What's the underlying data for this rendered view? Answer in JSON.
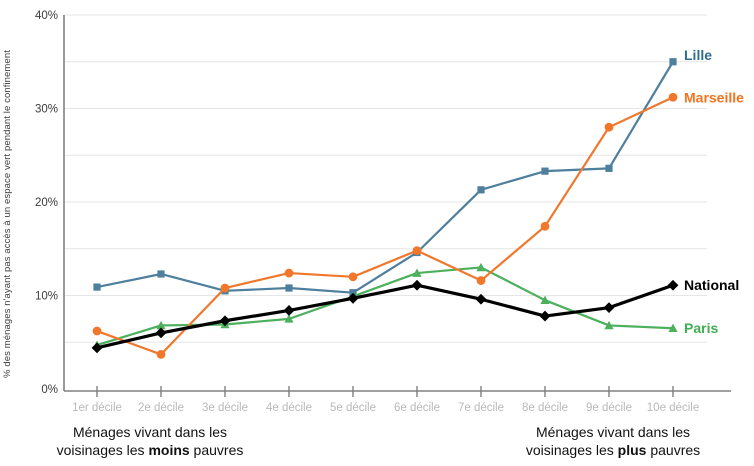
{
  "chart_data": {
    "type": "line",
    "title": "",
    "xlabel": "",
    "ylabel": "% des ménages n'ayant pas accès à un espace vert pendant le confinement",
    "ylim": [
      0,
      40
    ],
    "grid": true,
    "gridline_values": [
      5,
      10,
      15,
      20,
      25,
      30,
      35,
      40
    ],
    "y_tick_values": [
      0,
      10,
      20,
      30,
      40
    ],
    "y_tick_labels": [
      "0%",
      "10%",
      "20%",
      "30%",
      "40%"
    ],
    "categories": [
      "1er décile",
      "2e décile",
      "3e décile",
      "4e décile",
      "5e décile",
      "6e décile",
      "7e décile",
      "8e décile",
      "9e décile",
      "10e décile"
    ],
    "legend_position": "end-of-line labels, right of last point",
    "series": [
      {
        "name": "Lille",
        "color": "#4e7f9d",
        "label_color": "#2e6d8f",
        "marker": "square",
        "line_width": 2.2,
        "label_dy": -7,
        "values": [
          10.9,
          12.3,
          10.5,
          10.8,
          10.3,
          14.6,
          21.3,
          23.3,
          23.6,
          35.0
        ]
      },
      {
        "name": "Paris",
        "color": "#4cb05c",
        "label_color": "#3fae53",
        "marker": "triangle-up",
        "line_width": 2.2,
        "label_dy": 0,
        "values": [
          4.7,
          6.8,
          6.9,
          7.5,
          9.9,
          12.4,
          13.0,
          9.5,
          6.8,
          6.5
        ]
      },
      {
        "name": "Marseille",
        "color": "#f0772b",
        "label_color": "#f4731f",
        "marker": "circle",
        "line_width": 2.2,
        "label_dy": 0,
        "values": [
          6.2,
          3.7,
          10.8,
          12.4,
          12.0,
          14.8,
          11.6,
          17.4,
          28.0,
          31.2
        ]
      },
      {
        "name": "National",
        "color": "#000000",
        "label_color": "#000000",
        "marker": "diamond",
        "line_width": 3.2,
        "label_dy": 0,
        "values": [
          4.4,
          6.0,
          7.3,
          8.4,
          9.7,
          11.1,
          9.6,
          7.8,
          8.7,
          11.1
        ]
      }
    ]
  },
  "annotations": {
    "left": {
      "line1": "Ménages vivant dans les",
      "line2_pre": "voisinages les ",
      "line2_bold": "moins",
      "line2_post": " pauvres"
    },
    "right": {
      "line1": "Ménages vivant dans les",
      "line2_pre": "voisinages les ",
      "line2_bold": "plus",
      "line2_post": " pauvres"
    }
  }
}
